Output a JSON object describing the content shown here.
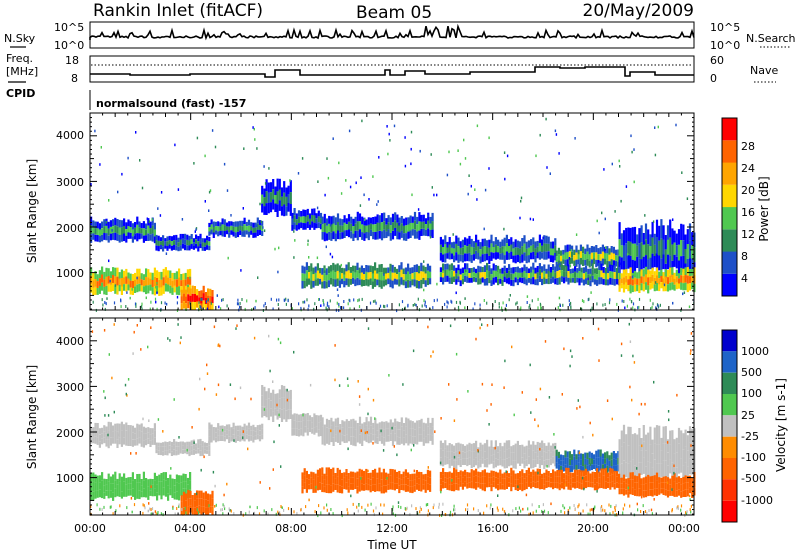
{
  "header": {
    "station": "Rankin Inlet (fitACF)",
    "beam": "Beam 05",
    "date": "20/May/2009"
  },
  "noise_panel": {
    "left_label": "N.Sky",
    "right_label": "N.Search",
    "left_ticks": [
      "10^5",
      "10^0"
    ],
    "right_ticks": [
      "10^5",
      "10^0"
    ]
  },
  "freq_panel": {
    "left_label_1": "Freq.",
    "left_label_2": "[MHz]",
    "right_label": "Nave",
    "left_ticks": [
      "18",
      "8"
    ],
    "right_ticks": [
      "60",
      "0"
    ]
  },
  "cpid": {
    "label": "CPID",
    "text": "normalsound (fast) -157"
  },
  "axes": {
    "ylabel": "Slant Range [km]",
    "y_ticks": [
      "4000",
      "3000",
      "2000",
      "1000"
    ],
    "x_ticks": [
      "00:00",
      "04:00",
      "08:00",
      "12:00",
      "16:00",
      "20:00",
      "00:00"
    ],
    "xlabel": "Time UT"
  },
  "power_scale": {
    "label": "Power [dB]",
    "ticks": [
      "28",
      "24",
      "20",
      "16",
      "12",
      "8",
      "4"
    ],
    "colors": [
      "#0000ff",
      "#1e50c8",
      "#2e8b57",
      "#50c850",
      "#ffd700",
      "#ffa500",
      "#ff6400",
      "#ff0000"
    ]
  },
  "velocity_scale": {
    "label": "Velocity [m s-1]",
    "ticks": [
      "1000",
      "500",
      "100",
      "25",
      "-25",
      "-100",
      "-500",
      "-1000"
    ],
    "colors": [
      "#0000cd",
      "#1e64c8",
      "#2e8b57",
      "#50c850",
      "#c0c0c0",
      "#ff8c00",
      "#ff6400",
      "#ff3200",
      "#ff0000"
    ]
  },
  "chart_data": [
    {
      "type": "heatmap",
      "title": "Power",
      "xlabel": "Time UT",
      "ylabel": "Slant Range [km]",
      "xlim": [
        0,
        24
      ],
      "ylim": [
        180,
        4500
      ],
      "colorbar": {
        "label": "Power [dB]",
        "range": [
          0,
          30
        ]
      },
      "bands": [
        {
          "t0": 0.0,
          "t1": 2.6,
          "r0": 1700,
          "r1": 2150,
          "value": 12
        },
        {
          "t0": 2.6,
          "t1": 4.7,
          "r0": 1500,
          "r1": 1800,
          "value": 10
        },
        {
          "t0": 4.7,
          "t1": 6.8,
          "r0": 1800,
          "r1": 2150,
          "value": 12
        },
        {
          "t0": 6.8,
          "t1": 8.0,
          "r0": 2300,
          "r1": 2950,
          "value": 9
        },
        {
          "t0": 8.0,
          "t1": 9.2,
          "r0": 1950,
          "r1": 2350,
          "value": 10
        },
        {
          "t0": 9.2,
          "t1": 13.6,
          "r0": 1750,
          "r1": 2250,
          "value": 12
        },
        {
          "t0": 13.9,
          "t1": 18.5,
          "r0": 1250,
          "r1": 1750,
          "value": 12
        },
        {
          "t0": 18.5,
          "t1": 21.0,
          "r0": 1150,
          "r1": 1550,
          "value": 15
        },
        {
          "t0": 21.0,
          "t1": 24.0,
          "r0": 1000,
          "r1": 2000,
          "value": 10
        },
        {
          "t0": 0.0,
          "t1": 4.0,
          "r0": 550,
          "r1": 1050,
          "value": 24
        },
        {
          "t0": 3.6,
          "t1": 4.9,
          "r0": 180,
          "r1": 650,
          "value": 29
        },
        {
          "t0": 8.4,
          "t1": 13.5,
          "r0": 700,
          "r1": 1150,
          "value": 16
        },
        {
          "t0": 13.9,
          "t1": 21.0,
          "r0": 750,
          "r1": 1150,
          "value": 14
        },
        {
          "t0": 21.0,
          "t1": 24.0,
          "r0": 600,
          "r1": 1050,
          "value": 24
        }
      ]
    },
    {
      "type": "heatmap",
      "title": "Velocity",
      "xlabel": "Time UT",
      "ylabel": "Slant Range [km]",
      "xlim": [
        0,
        24
      ],
      "ylim": [
        180,
        4500
      ],
      "colorbar": {
        "label": "Velocity [m s-1]",
        "range": [
          -1000,
          1000
        ]
      },
      "bands": [
        {
          "t0": 0.0,
          "t1": 2.6,
          "r0": 1700,
          "r1": 2150,
          "value": 0
        },
        {
          "t0": 2.6,
          "t1": 4.7,
          "r0": 1500,
          "r1": 1800,
          "value": 0
        },
        {
          "t0": 4.7,
          "t1": 6.8,
          "r0": 1800,
          "r1": 2150,
          "value": 0
        },
        {
          "t0": 6.8,
          "t1": 8.0,
          "r0": 2300,
          "r1": 2950,
          "value": 0
        },
        {
          "t0": 8.0,
          "t1": 9.2,
          "r0": 1950,
          "r1": 2350,
          "value": 0
        },
        {
          "t0": 9.2,
          "t1": 13.6,
          "r0": 1750,
          "r1": 2250,
          "value": 0
        },
        {
          "t0": 13.9,
          "t1": 18.5,
          "r0": 1250,
          "r1": 1750,
          "value": 0
        },
        {
          "t0": 18.5,
          "t1": 21.0,
          "r0": 1150,
          "r1": 1550,
          "value": 600
        },
        {
          "t0": 21.0,
          "t1": 24.0,
          "r0": 1000,
          "r1": 2000,
          "value": 0
        },
        {
          "t0": 0.0,
          "t1": 4.0,
          "r0": 550,
          "r1": 1050,
          "value": 60
        },
        {
          "t0": 3.6,
          "t1": 4.9,
          "r0": 180,
          "r1": 650,
          "value": -200
        },
        {
          "t0": 8.4,
          "t1": 13.5,
          "r0": 700,
          "r1": 1150,
          "value": -200
        },
        {
          "t0": 13.9,
          "t1": 21.0,
          "r0": 750,
          "r1": 1150,
          "value": -200
        },
        {
          "t0": 21.0,
          "t1": 24.0,
          "r0": 600,
          "r1": 1050,
          "value": -200
        }
      ]
    }
  ]
}
